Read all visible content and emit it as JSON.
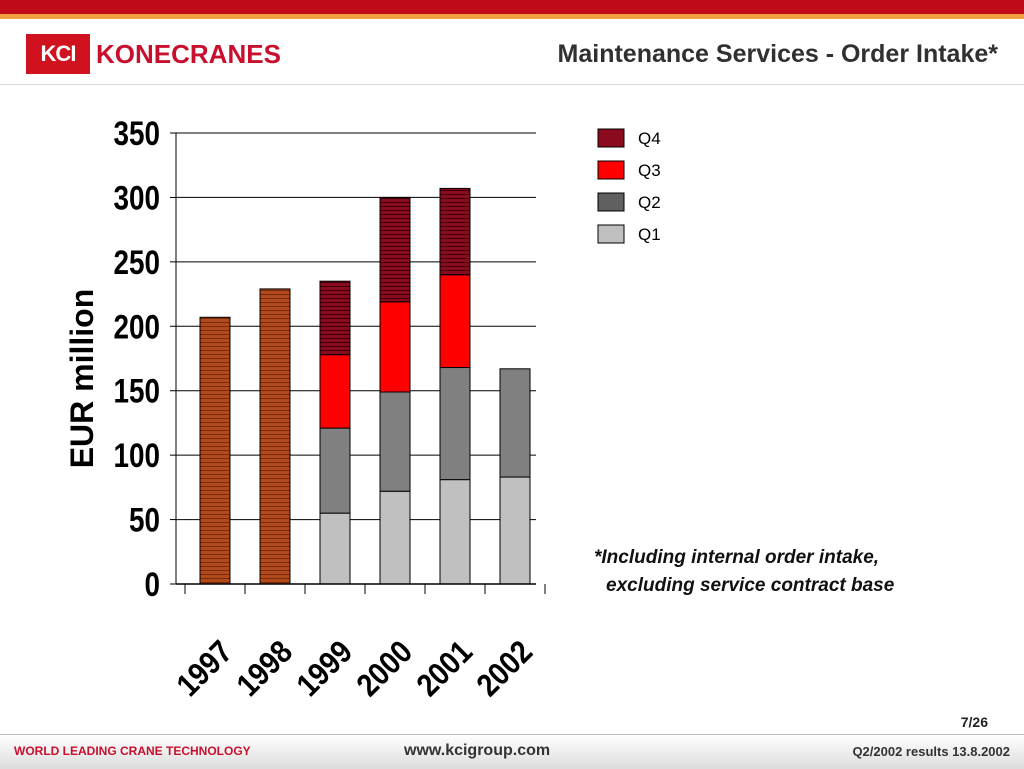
{
  "header": {
    "logo_mark": "KCI",
    "logo_text": "KONECRANES",
    "title": "Maintenance Services - Order Intake*"
  },
  "chart_data": {
    "type": "bar",
    "stacked": true,
    "categories": [
      "1997",
      "1998",
      "1999",
      "2000",
      "2001",
      "2002"
    ],
    "ylabel": "EUR million",
    "ylim": [
      0,
      350
    ],
    "yticks": [
      0,
      50,
      100,
      150,
      200,
      250,
      300,
      350
    ],
    "grid": true,
    "legend_position": "top-right",
    "annual_totals": [
      {
        "category": "1997",
        "value": 207
      },
      {
        "category": "1998",
        "value": 229
      }
    ],
    "series": [
      {
        "name": "Q1",
        "color": "#c0c0c0",
        "values": [
          null,
          null,
          55,
          72,
          81,
          83
        ]
      },
      {
        "name": "Q2",
        "color": "#808080",
        "values": [
          null,
          null,
          66,
          77,
          87,
          84
        ]
      },
      {
        "name": "Q3",
        "color": "#ff0000",
        "values": [
          null,
          null,
          57,
          70,
          72,
          null
        ]
      },
      {
        "name": "Q4",
        "color": "#8b0a1e",
        "values": [
          null,
          null,
          57,
          81,
          67,
          null
        ]
      }
    ],
    "annual_color": "#b34a1c"
  },
  "footnote": {
    "line1": "*Including internal order intake,",
    "line2": "excluding service contract base"
  },
  "page_number": "7/26",
  "footer": {
    "left": "WORLD LEADING CRANE TECHNOLOGY",
    "center": "www.kcigroup.com",
    "right": "Q2/2002 results 13.8.2002"
  }
}
